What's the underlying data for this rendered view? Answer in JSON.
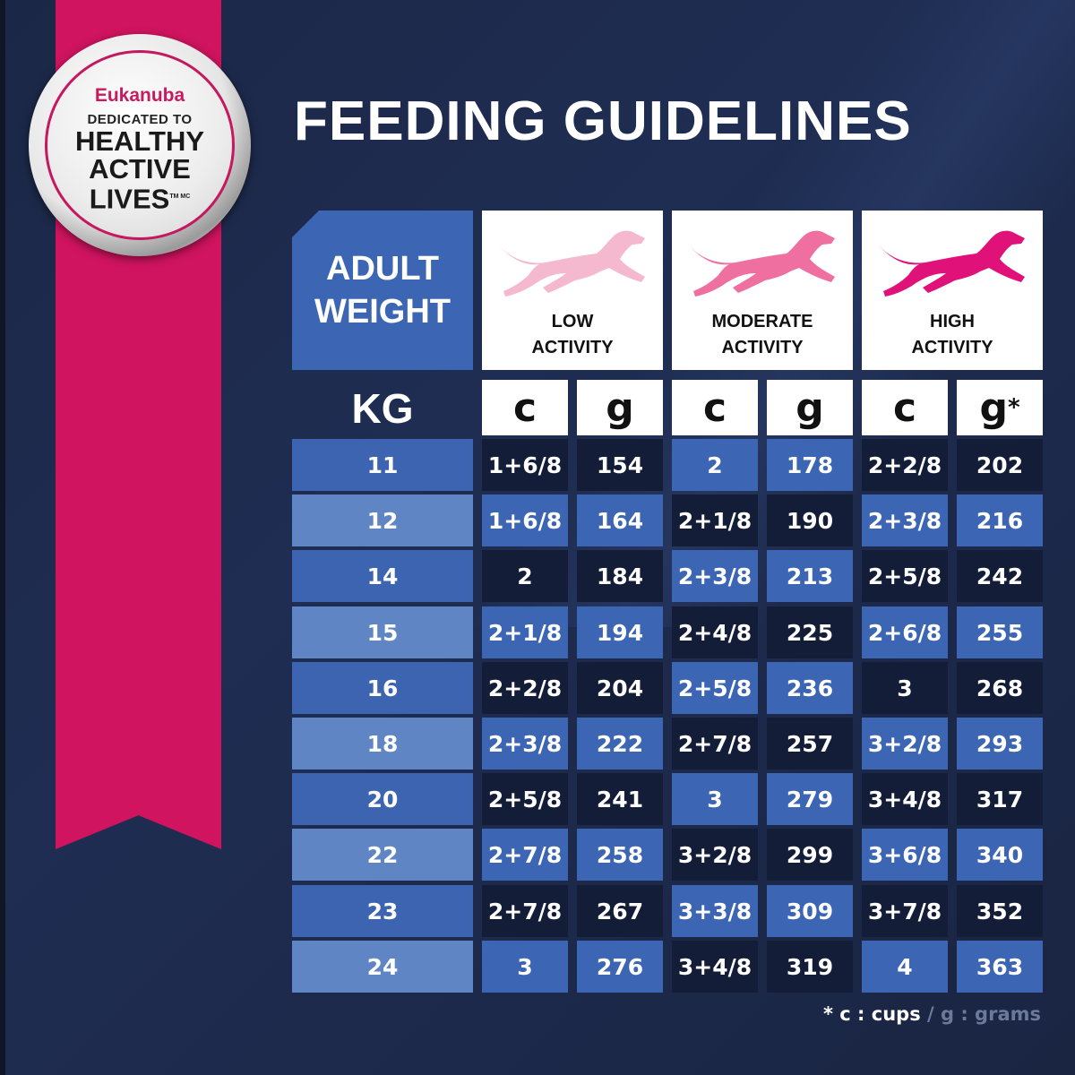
{
  "badge": {
    "brand": "Eukanuba",
    "subtitle": "DEDICATED TO",
    "line1": "HEALTHY",
    "line2": "ACTIVE",
    "line3": "LIVES",
    "tm": "TM MC"
  },
  "title": "FEEDING GUIDELINES",
  "header": {
    "adult_weight": "ADULT\nWEIGHT",
    "kg": "KG",
    "activities": [
      {
        "label": "LOW\nACTIVITY",
        "color": "#f4b8cf"
      },
      {
        "label": "MODERATE\nACTIVITY",
        "color": "#ee6fa0"
      },
      {
        "label": "HIGH\nACTIVITY",
        "color": "#e0127a"
      }
    ],
    "units": [
      "c",
      "g",
      "c",
      "g",
      "c",
      "g"
    ],
    "asterisk": "*"
  },
  "rows": [
    {
      "kg": "11",
      "values": [
        "1+6/8",
        "154",
        "2",
        "178",
        "2+2/8",
        "202"
      ]
    },
    {
      "kg": "12",
      "values": [
        "1+6/8",
        "164",
        "2+1/8",
        "190",
        "2+3/8",
        "216"
      ]
    },
    {
      "kg": "14",
      "values": [
        "2",
        "184",
        "2+3/8",
        "213",
        "2+5/8",
        "242"
      ]
    },
    {
      "kg": "15",
      "values": [
        "2+1/8",
        "194",
        "2+4/8",
        "225",
        "2+6/8",
        "255"
      ]
    },
    {
      "kg": "16",
      "values": [
        "2+2/8",
        "204",
        "2+5/8",
        "236",
        "3",
        "268"
      ]
    },
    {
      "kg": "18",
      "values": [
        "2+3/8",
        "222",
        "2+7/8",
        "257",
        "3+2/8",
        "293"
      ]
    },
    {
      "kg": "20",
      "values": [
        "2+5/8",
        "241",
        "3",
        "279",
        "3+4/8",
        "317"
      ]
    },
    {
      "kg": "22",
      "values": [
        "2+7/8",
        "258",
        "3+2/8",
        "299",
        "3+6/8",
        "340"
      ]
    },
    {
      "kg": "23",
      "values": [
        "2+7/8",
        "267",
        "3+3/8",
        "309",
        "3+7/8",
        "352"
      ]
    },
    {
      "kg": "24",
      "values": [
        "3",
        "276",
        "3+4/8",
        "319",
        "4",
        "363"
      ]
    }
  ],
  "cell_colors": [
    [
      "dark",
      "dark",
      "blue",
      "blue",
      "dark",
      "dark"
    ],
    [
      "blue",
      "blue",
      "dark",
      "dark",
      "blue",
      "blue"
    ],
    [
      "dark",
      "dark",
      "blue",
      "blue",
      "dark",
      "dark"
    ],
    [
      "blue",
      "blue",
      "dark",
      "dark",
      "blue",
      "blue"
    ],
    [
      "dark",
      "dark",
      "blue",
      "blue",
      "dark",
      "dark"
    ],
    [
      "blue",
      "blue",
      "dark",
      "dark",
      "blue",
      "blue"
    ],
    [
      "dark",
      "dark",
      "blue",
      "blue",
      "dark",
      "dark"
    ],
    [
      "blue",
      "blue",
      "dark",
      "dark",
      "blue",
      "blue"
    ],
    [
      "dark",
      "dark",
      "blue",
      "blue",
      "dark",
      "dark"
    ],
    [
      "blue",
      "blue",
      "dark",
      "dark",
      "blue",
      "blue"
    ]
  ],
  "footnote": {
    "cups": "* c : cups",
    "separator": " / ",
    "grams": "g : grams"
  },
  "colors": {
    "ribbon": "#d0145f",
    "background": "#1b2746",
    "cell_blue": "#3c66b4",
    "cell_dark": "#141d38"
  }
}
